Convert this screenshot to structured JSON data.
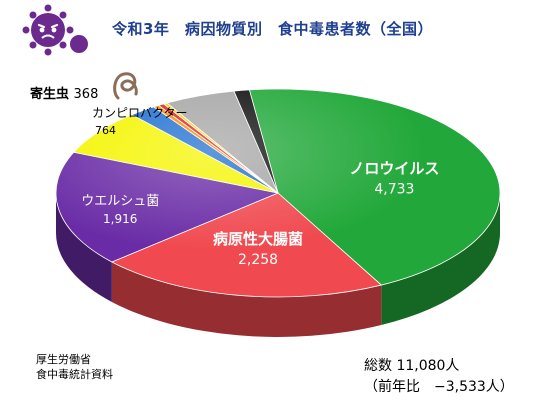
{
  "title": "令和3年　病因物質別　食中毒患者数（全国）",
  "source_lines": [
    "厚生労働省",
    "食中毒統計資料"
  ],
  "total": "総数 11,080人",
  "comparison": "（前年比　−3,533人）",
  "icons": [
    "virus-icon",
    "parasite-worm-icon"
  ],
  "chart_data": {
    "type": "pie",
    "title": "令和3年　病因物質別　食中毒患者数（全国）",
    "slices": [
      {
        "label": "ノロウイルス",
        "value": 4733,
        "value_label": "4,733",
        "color": "#22a83a"
      },
      {
        "label": "病原性大腸菌",
        "value": 2258,
        "value_label": "2,258",
        "color": "#f0494f"
      },
      {
        "label": "ウエルシュ菌",
        "value": 1916,
        "value_label": "1,916",
        "color": "#6a2ca6"
      },
      {
        "label": "カンピロバクター",
        "value": 764,
        "value_label": "764",
        "color": "#f5f500"
      },
      {
        "label": "",
        "value": 210,
        "value_label": "",
        "color": "#1f6fd0"
      },
      {
        "label": "",
        "value": 45,
        "value_label": "",
        "color": "#ff8a00"
      },
      {
        "label": "",
        "value": 45,
        "value_label": "",
        "color": "#e02020"
      },
      {
        "label": "",
        "value": 30,
        "value_label": "",
        "color": "#ffd400"
      },
      {
        "label": "",
        "value": 550,
        "value_label": "",
        "color": "#a6a6a6"
      },
      {
        "label": "",
        "value": 120,
        "value_label": "",
        "color": "#111111"
      }
    ],
    "callouts": [
      {
        "label": "寄生虫",
        "value_label": "368"
      }
    ]
  }
}
